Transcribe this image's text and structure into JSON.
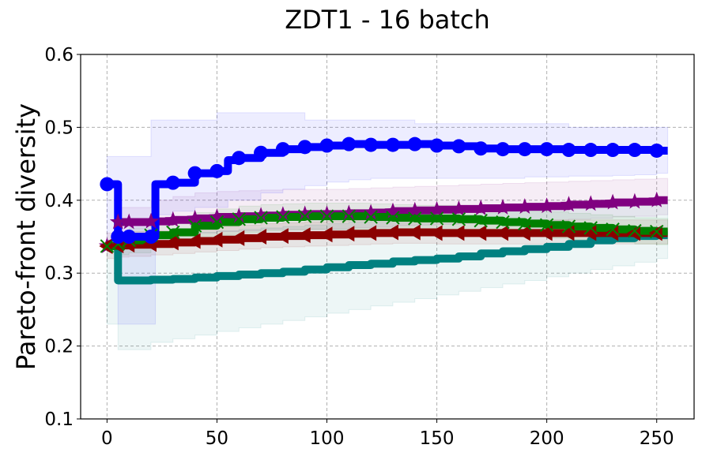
{
  "chart_data": {
    "type": "line",
    "title": "ZDT1 - 16 batch",
    "xlabel": "",
    "ylabel": "Pareto-front diversity",
    "xlim": [
      -12,
      267
    ],
    "ylim": [
      0.1,
      0.6
    ],
    "xticks": [
      0,
      50,
      100,
      150,
      200,
      250
    ],
    "yticks": [
      0.1,
      0.2,
      0.3,
      0.4,
      0.5,
      0.6
    ],
    "xtick_labels": [
      "0",
      "50",
      "100",
      "150",
      "200",
      "250"
    ],
    "ytick_labels": [
      "0.1",
      "0.2",
      "0.3",
      "0.4",
      "0.5",
      "0.6"
    ],
    "grid": true,
    "series": [
      {
        "name": "purple",
        "color": "#800080",
        "marker": "star",
        "x": [
          0,
          5,
          10,
          20,
          30,
          40,
          50,
          60,
          70,
          80,
          90,
          100,
          110,
          120,
          130,
          140,
          150,
          160,
          170,
          180,
          190,
          200,
          210,
          220,
          230,
          240,
          250,
          255
        ],
        "y": [
          0.337,
          0.37,
          0.37,
          0.371,
          0.373,
          0.375,
          0.377,
          0.378,
          0.379,
          0.38,
          0.381,
          0.381,
          0.382,
          0.383,
          0.385,
          0.386,
          0.387,
          0.388,
          0.389,
          0.39,
          0.391,
          0.392,
          0.394,
          0.395,
          0.397,
          0.398,
          0.4,
          0.4
        ],
        "band_low": [
          0.33,
          0.35,
          0.35,
          0.35,
          0.352,
          0.355,
          0.357,
          0.358,
          0.36,
          0.36,
          0.36,
          0.36,
          0.362,
          0.363,
          0.365,
          0.366,
          0.367,
          0.368,
          0.37,
          0.37,
          0.371,
          0.372,
          0.374,
          0.375,
          0.377,
          0.378,
          0.38,
          0.38
        ],
        "band_high": [
          0.345,
          0.39,
          0.39,
          0.4,
          0.405,
          0.41,
          0.412,
          0.413,
          0.414,
          0.415,
          0.415,
          0.415,
          0.416,
          0.417,
          0.418,
          0.419,
          0.42,
          0.421,
          0.422,
          0.423,
          0.424,
          0.425,
          0.426,
          0.427,
          0.428,
          0.429,
          0.43,
          0.43
        ]
      },
      {
        "name": "teal",
        "color": "#008080",
        "marker": "none",
        "x": [
          0,
          5,
          10,
          20,
          30,
          40,
          50,
          60,
          70,
          80,
          90,
          100,
          110,
          120,
          130,
          140,
          150,
          160,
          170,
          180,
          190,
          200,
          210,
          220,
          230,
          240,
          250,
          255
        ],
        "y": [
          0.337,
          0.29,
          0.29,
          0.291,
          0.292,
          0.294,
          0.296,
          0.298,
          0.3,
          0.302,
          0.305,
          0.308,
          0.311,
          0.313,
          0.316,
          0.318,
          0.32,
          0.323,
          0.327,
          0.33,
          0.333,
          0.336,
          0.34,
          0.345,
          0.348,
          0.351,
          0.352,
          0.352
        ],
        "band_low": [
          0.23,
          0.195,
          0.195,
          0.205,
          0.21,
          0.215,
          0.22,
          0.225,
          0.23,
          0.235,
          0.24,
          0.245,
          0.25,
          0.255,
          0.26,
          0.265,
          0.27,
          0.275,
          0.28,
          0.285,
          0.29,
          0.295,
          0.3,
          0.305,
          0.31,
          0.315,
          0.32,
          0.32
        ],
        "band_high": [
          0.345,
          0.35,
          0.35,
          0.352,
          0.354,
          0.356,
          0.358,
          0.36,
          0.362,
          0.364,
          0.366,
          0.368,
          0.37,
          0.372,
          0.374,
          0.376,
          0.378,
          0.38,
          0.382,
          0.384,
          0.386,
          0.388,
          0.39,
          0.392,
          0.394,
          0.395,
          0.396,
          0.396
        ]
      },
      {
        "name": "darkred",
        "color": "#8b0000",
        "marker": "triangle-left",
        "x": [
          0,
          5,
          10,
          20,
          30,
          40,
          50,
          60,
          70,
          80,
          90,
          100,
          110,
          120,
          130,
          140,
          150,
          160,
          170,
          180,
          190,
          200,
          210,
          220,
          230,
          240,
          250,
          255
        ],
        "y": [
          0.337,
          0.338,
          0.339,
          0.34,
          0.342,
          0.344,
          0.346,
          0.348,
          0.35,
          0.351,
          0.352,
          0.353,
          0.354,
          0.355,
          0.356,
          0.356,
          0.355,
          0.355,
          0.355,
          0.355,
          0.355,
          0.355,
          0.355,
          0.355,
          0.355,
          0.355,
          0.355,
          0.355
        ],
        "band_low": [
          0.32,
          0.322,
          0.323,
          0.325,
          0.327,
          0.329,
          0.331,
          0.333,
          0.335,
          0.336,
          0.337,
          0.338,
          0.339,
          0.34,
          0.341,
          0.341,
          0.34,
          0.34,
          0.34,
          0.34,
          0.34,
          0.34,
          0.34,
          0.34,
          0.34,
          0.34,
          0.34,
          0.34
        ],
        "band_high": [
          0.355,
          0.356,
          0.357,
          0.358,
          0.36,
          0.362,
          0.364,
          0.366,
          0.368,
          0.369,
          0.37,
          0.371,
          0.372,
          0.373,
          0.374,
          0.374,
          0.373,
          0.373,
          0.373,
          0.373,
          0.373,
          0.373,
          0.373,
          0.373,
          0.373,
          0.373,
          0.373,
          0.373
        ]
      },
      {
        "name": "green",
        "color": "#008000",
        "marker": "x",
        "x": [
          0,
          5,
          10,
          20,
          30,
          40,
          50,
          60,
          70,
          80,
          90,
          100,
          110,
          120,
          130,
          140,
          150,
          160,
          170,
          180,
          190,
          200,
          210,
          220,
          230,
          240,
          250,
          255
        ],
        "y": [
          0.337,
          0.34,
          0.345,
          0.352,
          0.356,
          0.365,
          0.37,
          0.374,
          0.376,
          0.377,
          0.378,
          0.378,
          0.378,
          0.377,
          0.376,
          0.375,
          0.375,
          0.374,
          0.372,
          0.37,
          0.368,
          0.366,
          0.364,
          0.362,
          0.36,
          0.358,
          0.357,
          0.357
        ],
        "band_low": [
          0.33,
          0.325,
          0.328,
          0.335,
          0.34,
          0.348,
          0.352,
          0.356,
          0.358,
          0.359,
          0.36,
          0.36,
          0.36,
          0.359,
          0.358,
          0.357,
          0.357,
          0.356,
          0.354,
          0.352,
          0.35,
          0.348,
          0.346,
          0.344,
          0.342,
          0.34,
          0.339,
          0.339
        ],
        "band_high": [
          0.345,
          0.355,
          0.362,
          0.37,
          0.374,
          0.383,
          0.388,
          0.392,
          0.394,
          0.395,
          0.396,
          0.396,
          0.396,
          0.395,
          0.394,
          0.393,
          0.393,
          0.392,
          0.39,
          0.388,
          0.386,
          0.384,
          0.382,
          0.38,
          0.378,
          0.376,
          0.375,
          0.375
        ]
      },
      {
        "name": "blue",
        "color": "#0000ff",
        "marker": "circle",
        "x": [
          0,
          2,
          5,
          10,
          20,
          22,
          30,
          40,
          50,
          55,
          60,
          70,
          80,
          90,
          100,
          110,
          120,
          130,
          140,
          150,
          160,
          170,
          180,
          190,
          200,
          210,
          220,
          230,
          240,
          250,
          255
        ],
        "y": [
          0.422,
          0.422,
          0.35,
          0.35,
          0.35,
          0.422,
          0.424,
          0.437,
          0.44,
          0.455,
          0.458,
          0.465,
          0.47,
          0.473,
          0.475,
          0.477,
          0.476,
          0.476,
          0.477,
          0.475,
          0.474,
          0.471,
          0.47,
          0.47,
          0.47,
          0.469,
          0.469,
          0.469,
          0.469,
          0.468,
          0.468
        ],
        "band_low": [
          0.34,
          0.34,
          0.23,
          0.23,
          0.23,
          0.38,
          0.385,
          0.39,
          0.39,
          0.4,
          0.4,
          0.41,
          0.415,
          0.42,
          0.425,
          0.428,
          0.43,
          0.43,
          0.43,
          0.43,
          0.43,
          0.43,
          0.43,
          0.432,
          0.432,
          0.433,
          0.433,
          0.434,
          0.435,
          0.437,
          0.437
        ],
        "band_high": [
          0.46,
          0.46,
          0.46,
          0.46,
          0.51,
          0.51,
          0.51,
          0.51,
          0.52,
          0.52,
          0.52,
          0.52,
          0.52,
          0.51,
          0.51,
          0.51,
          0.51,
          0.51,
          0.505,
          0.505,
          0.505,
          0.505,
          0.505,
          0.505,
          0.505,
          0.5,
          0.5,
          0.5,
          0.5,
          0.5,
          0.5
        ]
      }
    ]
  }
}
